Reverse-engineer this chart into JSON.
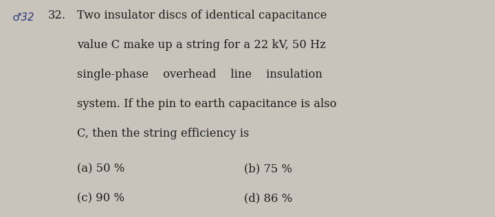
{
  "background_color": "#c8c4bc",
  "line1": "Two insulator discs of identical capacitance",
  "line2": "value C make up a string for a 22 kV, 50 Hz",
  "line3": "single-phase    overhead    line    insulation",
  "line4": "system. If the pin to earth capacitance is also",
  "line5": "C, then the string efficiency is",
  "opt_a": "(a) 50 %",
  "opt_b": "(b) 75 %",
  "opt_c": "(c) 90 %",
  "opt_d": "(d) 86 %",
  "text_color": "#1c1c1c",
  "font_size_main": 11.8,
  "handwriting_color": "#2a3a7a",
  "qnum_color": "#1c1c1c",
  "qnum": "32.",
  "hand_mark": "32"
}
